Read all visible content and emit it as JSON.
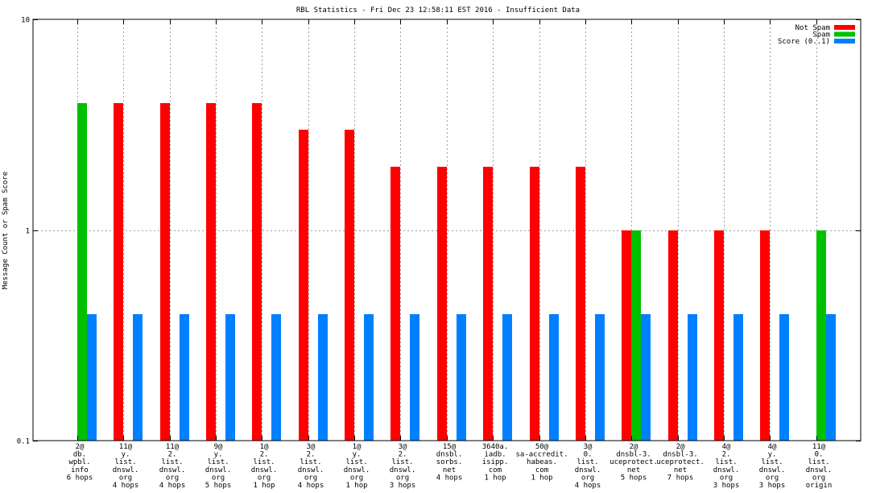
{
  "chart_data": {
    "type": "bar",
    "title": "RBL Statistics - Fri Dec 23 12:58:11 EST 2016 - Insufficient Data",
    "ylabel": "Message Count or Spam Score",
    "xlabel": "",
    "yscale": "log",
    "ylim": [
      0.1,
      10
    ],
    "yticks": [
      {
        "value": 0.1,
        "label": "0.1"
      },
      {
        "value": 1,
        "label": "1"
      },
      {
        "value": 10,
        "label": "10"
      }
    ],
    "grid": true,
    "legend_position": "top-right",
    "categories": [
      [
        "2@",
        "db.",
        "wpbl.",
        "info",
        "6 hops"
      ],
      [
        "11@",
        "y.",
        "list.",
        "dnswl.",
        "org",
        "4 hops"
      ],
      [
        "11@",
        "2.",
        "list.",
        "dnswl.",
        "org",
        "4 hops"
      ],
      [
        "9@",
        "y.",
        "list.",
        "dnswl.",
        "org",
        "5 hops"
      ],
      [
        "1@",
        "2.",
        "list.",
        "dnswl.",
        "org",
        "1 hop"
      ],
      [
        "3@",
        "2.",
        "list.",
        "dnswl.",
        "org",
        "4 hops"
      ],
      [
        "1@",
        "y.",
        "list.",
        "dnswl.",
        "org",
        "1 hop"
      ],
      [
        "3@",
        "2.",
        "list.",
        "dnswl.",
        "org",
        "3 hops"
      ],
      [
        "15@",
        "dnsbl.",
        "sorbs.",
        "net",
        "4 hops"
      ],
      [
        "3640a.",
        "iadb.",
        "isipp.",
        "com",
        "1 hop"
      ],
      [
        "50@",
        "sa-accredit.",
        "habeas.",
        "com",
        "1 hop"
      ],
      [
        "3@",
        "0.",
        "list.",
        "dnswl.",
        "org",
        "4 hops"
      ],
      [
        "2@",
        "dnsbl-3.",
        "uceprotect.",
        "net",
        "5 hops"
      ],
      [
        "2@",
        "dnsbl-3.",
        "uceprotect.",
        "net",
        "7 hops"
      ],
      [
        "4@",
        "2.",
        "list.",
        "dnswl.",
        "org",
        "3 hops"
      ],
      [
        "4@",
        "y.",
        "list.",
        "dnswl.",
        "org",
        "3 hops"
      ],
      [
        "11@",
        "0.",
        "list.",
        "dnswl.",
        "org",
        "origin"
      ]
    ],
    "series": [
      {
        "name": "Not Spam",
        "color": "#ff0000",
        "values": [
          null,
          4,
          4,
          4,
          4,
          3,
          3,
          2,
          2,
          2,
          2,
          2,
          1,
          1,
          1,
          1,
          null
        ]
      },
      {
        "name": "Spam",
        "color": "#00c000",
        "values": [
          4,
          null,
          null,
          null,
          null,
          null,
          null,
          null,
          null,
          null,
          null,
          null,
          1,
          null,
          null,
          null,
          1
        ]
      },
      {
        "name": "Score (0..1)",
        "color": "#0080ff",
        "values": [
          0.4,
          0.4,
          0.4,
          0.4,
          0.4,
          0.4,
          0.4,
          0.4,
          0.4,
          0.4,
          0.4,
          0.4,
          0.4,
          0.4,
          0.4,
          0.4,
          0.4
        ]
      }
    ]
  }
}
